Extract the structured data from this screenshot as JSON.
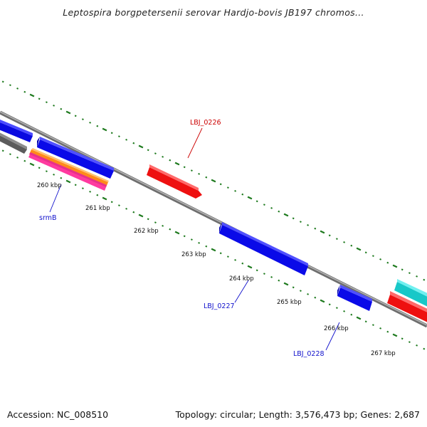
{
  "title": "Leptospira borgpetersenii serovar Hardjo-bovis JB197 chromos...",
  "footer": {
    "accession": "Accession: NC_008510",
    "summary": "Topology: circular; Length: 3,576,473 bp; Genes: 2,687"
  },
  "colors": {
    "backbone": "#888888",
    "tick": "#1e7a1e",
    "blue_gene": "#0a0af0",
    "red_gene": "#ee0c0c",
    "gray_gene": "#707070",
    "cyan_gene": "#20d0d0",
    "label_red": "#cc0000",
    "label_blue": "#1010cc"
  },
  "scale_labels": [
    "260 kbp",
    "261 kbp",
    "262 kbp",
    "263 kbp",
    "264 kbp",
    "265 kbp",
    "266 kbp",
    "267 kbp"
  ],
  "gene_labels": [
    {
      "text": "LBJ_0226",
      "color": "red"
    },
    {
      "text": "srmB",
      "color": "blue"
    },
    {
      "text": "LBJ_0227",
      "color": "blue"
    },
    {
      "text": "LBJ_0228",
      "color": "blue"
    }
  ]
}
